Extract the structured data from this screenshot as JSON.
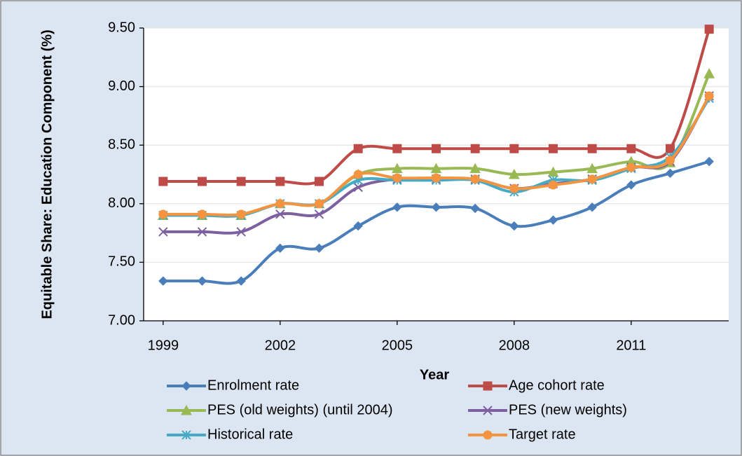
{
  "chart_data": {
    "type": "line",
    "x_label": "Year",
    "y_label": "Equitable Share: Education Component (%)",
    "x": [
      1999,
      2000,
      2001,
      2002,
      2003,
      2004,
      2005,
      2006,
      2007,
      2008,
      2009,
      2010,
      2011,
      2012,
      2013
    ],
    "xlim": [
      1998.5,
      2013.5
    ],
    "xticks": [
      1999,
      2002,
      2005,
      2008,
      2011
    ],
    "ylim": [
      7,
      9.5
    ],
    "yticks": [
      {
        "value": 7,
        "label": "7.00"
      },
      {
        "value": 7.5,
        "label": "7.50"
      },
      {
        "value": 8,
        "label": "8.00"
      },
      {
        "value": 8.5,
        "label": "8.50"
      },
      {
        "value": 9,
        "label": "9.00"
      },
      {
        "value": 9.5,
        "label": "9.50"
      }
    ],
    "grid": true,
    "legend": "bottom",
    "series": [
      {
        "name": "Enrolment rate",
        "color": "#4a7ebb",
        "marker": "diamond",
        "values": [
          7.34,
          7.34,
          7.34,
          7.62,
          7.62,
          7.81,
          7.97,
          7.97,
          7.96,
          7.81,
          7.86,
          7.97,
          8.16,
          8.26,
          8.36
        ]
      },
      {
        "name": "Age cohort rate",
        "color": "#be4b48",
        "marker": "square",
        "values": [
          8.19,
          8.19,
          8.19,
          8.19,
          8.19,
          8.47,
          8.47,
          8.47,
          8.47,
          8.47,
          8.47,
          8.47,
          8.47,
          8.47,
          9.49
        ]
      },
      {
        "name": "PES (old weights) (until 2004)",
        "color": "#98b954",
        "marker": "triangle",
        "values": [
          7.9,
          7.9,
          7.9,
          8.0,
          8.0,
          8.25,
          8.3,
          8.3,
          8.3,
          8.25,
          8.27,
          8.3,
          8.36,
          8.35,
          9.11
        ]
      },
      {
        "name": "PES (new weights)",
        "color": "#7d60a0",
        "marker": "x",
        "values": [
          7.76,
          7.76,
          7.76,
          7.91,
          7.91,
          8.14,
          8.21,
          8.21,
          8.21,
          8.13,
          8.17,
          8.21,
          8.31,
          8.36,
          8.92
        ]
      },
      {
        "name": "Historical rate",
        "color": "#46aac5",
        "marker": "star",
        "values": [
          7.9,
          7.9,
          7.9,
          8.0,
          8.0,
          8.2,
          8.2,
          8.2,
          8.2,
          8.1,
          8.2,
          8.2,
          8.3,
          8.4,
          8.9
        ]
      },
      {
        "name": "Target rate",
        "color": "#f59440",
        "marker": "circle",
        "values": [
          7.91,
          7.91,
          7.91,
          8.0,
          8.0,
          8.25,
          8.22,
          8.22,
          8.21,
          8.13,
          8.16,
          8.21,
          8.31,
          8.37,
          8.92
        ]
      }
    ]
  }
}
